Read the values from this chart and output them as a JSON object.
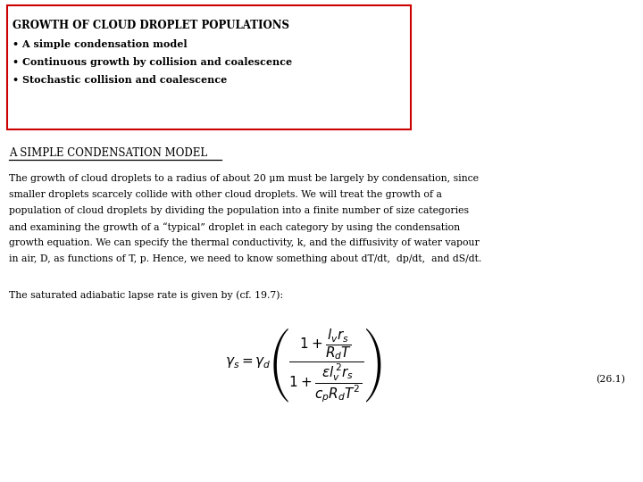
{
  "background_color": "#ffffff",
  "box_title": "GROWTH OF CLOUD DROPLET POPULATIONS",
  "box_bullets": [
    "• A simple condensation model",
    "• Continuous growth by collision and coalescence",
    "• Stochastic collision and coalescence"
  ],
  "section_heading": "A SIMPLE CONDENSATION MODEL",
  "paragraph_lines": [
    "The growth of cloud droplets to a radius of about 20 μm must be largely by condensation, since",
    "smaller droplets scarcely collide with other cloud droplets. We will treat the growth of a",
    "population of cloud droplets by dividing the population into a finite number of size categories",
    "and examining the growth of a “typical” droplet in each category by using the condensation",
    "growth equation. We can specify the thermal conductivity, k, and the diffusivity of water vapour",
    "in air, D, as functions of T, p. Hence, we need to know something about dT/dt,  dp/dt,  and dS/dt."
  ],
  "lapse_rate_text": "The saturated adiabatic lapse rate is given by (cf. 19.7):",
  "equation_label": "(26.1)",
  "box_color": "#cc0000",
  "font_size_box_title": 8.5,
  "font_size_bullets": 8.0,
  "font_size_heading": 8.5,
  "font_size_paragraph": 7.8,
  "font_size_equation": 11,
  "font_size_label": 7.8
}
